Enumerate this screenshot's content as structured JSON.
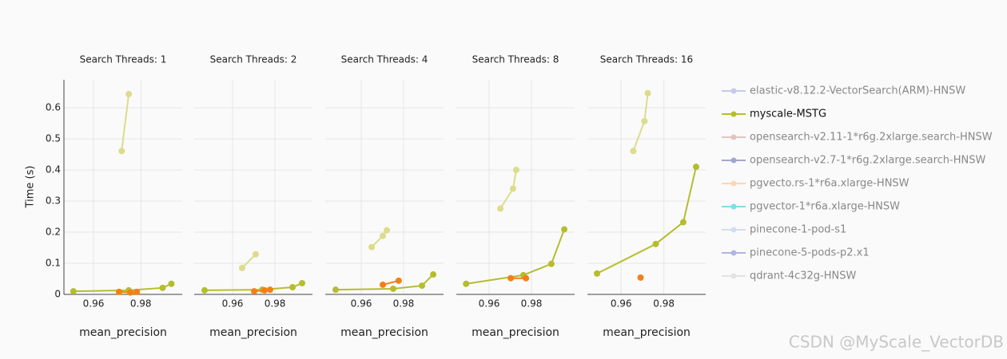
{
  "chart_data": {
    "type": "line",
    "y_label": "Time (s)",
    "ylim": [
      0,
      0.69
    ],
    "yticks": [
      0,
      0.1,
      0.2,
      0.3,
      0.4,
      0.5,
      0.6
    ],
    "grid": true,
    "legend_position": "right",
    "legend": [
      {
        "name": "elastic-v8.12.2-VectorSearch(ARM)-HNSW",
        "color": "#c5cae9",
        "dimmed": true
      },
      {
        "name": "myscale-MSTG",
        "color": "#b5bd2e",
        "dimmed": false
      },
      {
        "name": "opensearch-v2.11-1*r6g.2xlarge.search-HNSW",
        "color": "#e2c4c4",
        "dimmed": true
      },
      {
        "name": "opensearch-v2.7-1*r6g.2xlarge.search-HNSW",
        "color": "#a3a6d2",
        "dimmed": true
      },
      {
        "name": "pgvecto.rs-1*r6a.xlarge-HNSW",
        "color": "#ffd6b3",
        "dimmed": true
      },
      {
        "name": "pgvector-1*r6a.xlarge-HNSW",
        "color": "#86dae3",
        "dimmed": true
      },
      {
        "name": "pinecone-1-pod-s1",
        "color": "#d2ddf0",
        "dimmed": true
      },
      {
        "name": "pinecone-5-pods-p2.x1",
        "color": "#b3b3e3",
        "dimmed": true
      },
      {
        "name": "qdrant-4c32g-HNSW",
        "color": "#e3e3e3",
        "dimmed": true
      }
    ],
    "panels": [
      {
        "title": "Search Threads: 1",
        "x_label": "mean_precision",
        "xlim": [
          0.9475,
          0.9975
        ],
        "xticks": [
          0.96,
          0.98
        ],
        "series": [
          {
            "color": "#dcdc8c",
            "x": [
              0.9719,
              0.9749
            ],
            "values": [
              0.461,
              0.644
            ]
          },
          {
            "color": "#b5bd2e",
            "x": [
              0.9515,
              0.9749,
              0.9892,
              0.9929
            ],
            "values": [
              0.01,
              0.013,
              0.021,
              0.034
            ]
          },
          {
            "color": "#f57f17",
            "x": [
              0.9708,
              0.9756,
              0.9783
            ],
            "values": [
              0.008,
              0.006,
              0.008
            ]
          }
        ]
      },
      {
        "title": "Search Threads: 2",
        "x_label": "mean_precision",
        "xlim": [
          0.9419,
          0.9977
        ],
        "xticks": [
          0.96,
          0.98
        ],
        "series": [
          {
            "color": "#dcdc8c",
            "x": [
              0.9645,
              0.9709
            ],
            "values": [
              0.085,
              0.129
            ]
          },
          {
            "color": "#b5bd2e",
            "x": [
              0.9468,
              0.974,
              0.9883,
              0.9928
            ],
            "values": [
              0.013,
              0.015,
              0.023,
              0.036
            ]
          },
          {
            "color": "#f57f17",
            "x": [
              0.9702,
              0.9751,
              0.9777
            ],
            "values": [
              0.01,
              0.013,
              0.015
            ]
          }
        ]
      },
      {
        "title": "Search Threads: 4",
        "x_label": "mean_precision",
        "xlim": [
          0.943,
          0.9989
        ],
        "xticks": [
          0.96,
          0.98
        ],
        "series": [
          {
            "color": "#dcdc8c",
            "x": [
              0.9649,
              0.9702,
              0.9721
            ],
            "values": [
              0.152,
              0.188,
              0.206
            ]
          },
          {
            "color": "#b5bd2e",
            "x": [
              0.9479,
              0.9751,
              0.9887,
              0.994
            ],
            "values": [
              0.015,
              0.018,
              0.028,
              0.064
            ]
          },
          {
            "color": "#f57f17",
            "x": [
              0.9702,
              0.9777
            ],
            "values": [
              0.031,
              0.044
            ]
          }
        ]
      },
      {
        "title": "Search Threads: 8",
        "x_label": "mean_precision",
        "xlim": [
          0.9445,
          1.0004
        ],
        "xticks": [
          0.96,
          0.98
        ],
        "series": [
          {
            "color": "#dcdc8c",
            "x": [
              0.9653,
              0.9713,
              0.9728
            ],
            "values": [
              0.276,
              0.34,
              0.4
            ]
          },
          {
            "color": "#b5bd2e",
            "x": [
              0.9491,
              0.9762,
              0.9894,
              0.9955
            ],
            "values": [
              0.034,
              0.062,
              0.098,
              0.209
            ]
          },
          {
            "color": "#f57f17",
            "x": [
              0.9702,
              0.9774
            ],
            "values": [
              0.052,
              0.052
            ]
          }
        ]
      },
      {
        "title": "Search Threads: 16",
        "x_label": "mean_precision",
        "xlim": [
          0.9442,
          0.9996
        ],
        "xticks": [
          0.96,
          0.98
        ],
        "series": [
          {
            "color": "#dcdc8c",
            "x": [
              0.9657,
              0.9709,
              0.9725
            ],
            "values": [
              0.461,
              0.557,
              0.647
            ]
          },
          {
            "color": "#b5bd2e",
            "x": [
              0.9487,
              0.9762,
              0.9891,
              0.9951
            ],
            "values": [
              0.067,
              0.162,
              0.232,
              0.41
            ]
          },
          {
            "color": "#f57f17",
            "x": [
              0.9691
            ],
            "values": [
              0.054
            ]
          }
        ]
      }
    ]
  },
  "watermark": "CSDN @MyScale_VectorDB"
}
